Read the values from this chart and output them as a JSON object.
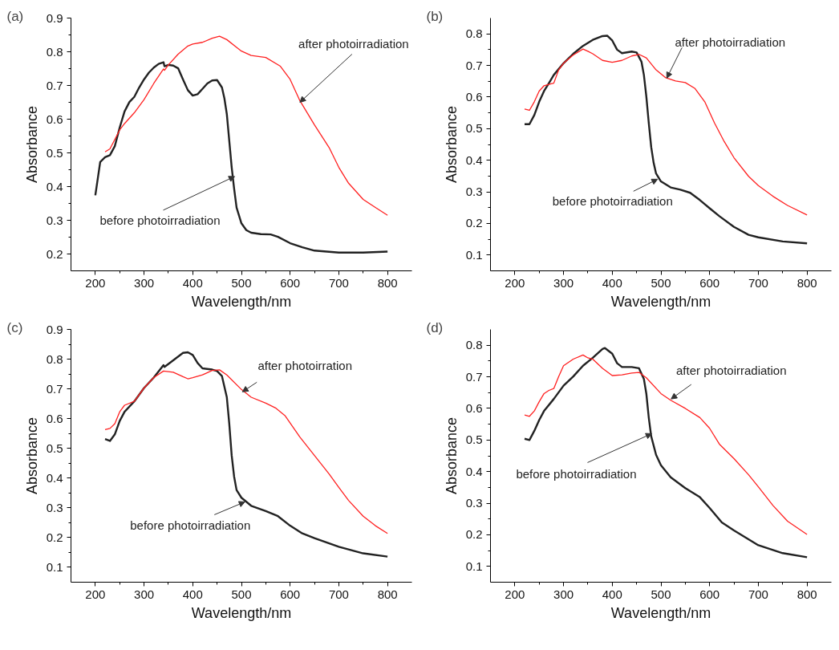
{
  "chart_data": [
    {
      "type": "line",
      "title": "(a)",
      "xlabel": "Wavelength/nm",
      "ylabel": "Absorbance",
      "xlim": [
        150,
        850
      ],
      "ylim": [
        0.15,
        0.9
      ],
      "xticks": [
        200,
        {
          "value": 250,
          "label": null
        },
        300,
        {
          "value": 350,
          "label": null
        },
        400,
        {
          "value": 450,
          "label": null
        },
        500,
        {
          "value": 550,
          "label": null
        },
        600,
        {
          "value": 650,
          "label": null
        },
        700,
        {
          "value": 750,
          "label": null
        },
        800
      ],
      "yticks": [
        0.2,
        {
          "value": 0.25,
          "label": null
        },
        0.3,
        {
          "value": 0.35,
          "label": null
        },
        0.4,
        {
          "value": 0.45,
          "label": null
        },
        0.5,
        {
          "value": 0.55,
          "label": null
        },
        0.6,
        {
          "value": 0.65,
          "label": null
        },
        0.7,
        {
          "value": 0.75,
          "label": null
        },
        0.8,
        {
          "value": 0.85,
          "label": null
        },
        0.9
      ],
      "series": [
        {
          "color": "#222222",
          "x": [
            200,
            210,
            220,
            230,
            240,
            250,
            260,
            270,
            280,
            290,
            300,
            310,
            320,
            330,
            340,
            342,
            350,
            360,
            370,
            380,
            390,
            400,
            410,
            420,
            430,
            440,
            450,
            460,
            465,
            470,
            475,
            480,
            485,
            490,
            500,
            510,
            520,
            540,
            560,
            575,
            600,
            625,
            650,
            700,
            750,
            800
          ],
          "values": [
            0.374,
            0.473,
            0.487,
            0.493,
            0.52,
            0.575,
            0.623,
            0.651,
            0.666,
            0.694,
            0.718,
            0.738,
            0.753,
            0.764,
            0.769,
            0.757,
            0.761,
            0.759,
            0.751,
            0.718,
            0.686,
            0.67,
            0.674,
            0.69,
            0.706,
            0.715,
            0.716,
            0.694,
            0.662,
            0.615,
            0.536,
            0.457,
            0.394,
            0.338,
            0.291,
            0.271,
            0.263,
            0.259,
            0.258,
            0.251,
            0.232,
            0.22,
            0.21,
            0.204,
            0.204,
            0.207
          ]
        },
        {
          "color": "#ff2020",
          "x": [
            220,
            230,
            240,
            250,
            260,
            280,
            300,
            320,
            340,
            342,
            350,
            370,
            390,
            400,
            420,
            440,
            455,
            470,
            490,
            500,
            520,
            550,
            580,
            600,
            620,
            650,
            680,
            700,
            720,
            750,
            775,
            800
          ],
          "values": [
            0.503,
            0.512,
            0.54,
            0.568,
            0.587,
            0.619,
            0.658,
            0.706,
            0.749,
            0.745,
            0.761,
            0.793,
            0.817,
            0.823,
            0.828,
            0.84,
            0.846,
            0.836,
            0.813,
            0.802,
            0.789,
            0.783,
            0.757,
            0.718,
            0.655,
            0.583,
            0.516,
            0.457,
            0.41,
            0.362,
            0.338,
            0.315
          ]
        }
      ],
      "annotations": [
        {
          "text": "after photoirradiation",
          "x": 620,
          "y": 0.65
        },
        {
          "text": "before photoirradiation",
          "x": 486,
          "y": 0.43
        }
      ]
    },
    {
      "type": "line",
      "title": "(b)",
      "xlabel": "Wavelength/nm",
      "ylabel": "Absorbance",
      "xlim": [
        150,
        850
      ],
      "ylim": [
        0.05,
        0.85
      ],
      "xticks": [
        200,
        {
          "value": 250,
          "label": null
        },
        300,
        {
          "value": 350,
          "label": null
        },
        400,
        {
          "value": 450,
          "label": null
        },
        500,
        {
          "value": 550,
          "label": null
        },
        600,
        {
          "value": 650,
          "label": null
        },
        700,
        {
          "value": 750,
          "label": null
        },
        800
      ],
      "yticks": [
        0.1,
        {
          "value": 0.15,
          "label": null
        },
        0.2,
        {
          "value": 0.25,
          "label": null
        },
        0.3,
        {
          "value": 0.35,
          "label": null
        },
        0.4,
        {
          "value": 0.45,
          "label": null
        },
        0.5,
        {
          "value": 0.55,
          "label": null
        },
        0.6,
        {
          "value": 0.65,
          "label": null
        },
        0.7,
        {
          "value": 0.75,
          "label": null
        },
        0.8
      ],
      "series": [
        {
          "color": "#222222",
          "x": [
            220,
            230,
            240,
            250,
            260,
            270,
            280,
            300,
            320,
            340,
            360,
            380,
            390,
            400,
            410,
            420,
            440,
            450,
            460,
            465,
            470,
            475,
            480,
            485,
            490,
            500,
            520,
            540,
            560,
            580,
            600,
            620,
            650,
            680,
            700,
            750,
            800
          ],
          "values": [
            0.514,
            0.514,
            0.543,
            0.585,
            0.619,
            0.644,
            0.67,
            0.707,
            0.737,
            0.762,
            0.781,
            0.793,
            0.794,
            0.779,
            0.75,
            0.739,
            0.744,
            0.741,
            0.712,
            0.67,
            0.602,
            0.518,
            0.442,
            0.392,
            0.358,
            0.333,
            0.314,
            0.307,
            0.297,
            0.274,
            0.248,
            0.223,
            0.189,
            0.164,
            0.156,
            0.143,
            0.137
          ]
        },
        {
          "color": "#ff2020",
          "x": [
            220,
            230,
            240,
            250,
            260,
            270,
            280,
            290,
            300,
            320,
            340,
            350,
            360,
            380,
            400,
            420,
            440,
            455,
            470,
            490,
            510,
            530,
            550,
            570,
            590,
            610,
            630,
            650,
            680,
            700,
            730,
            760,
            800
          ],
          "values": [
            0.562,
            0.558,
            0.585,
            0.619,
            0.636,
            0.64,
            0.644,
            0.686,
            0.707,
            0.733,
            0.752,
            0.745,
            0.737,
            0.716,
            0.71,
            0.716,
            0.73,
            0.735,
            0.724,
            0.686,
            0.661,
            0.651,
            0.646,
            0.627,
            0.585,
            0.518,
            0.459,
            0.408,
            0.349,
            0.32,
            0.286,
            0.257,
            0.227
          ]
        }
      ],
      "annotations": [
        {
          "text": "after photoirradiation",
          "x": 512,
          "y": 0.66
        },
        {
          "text": "before photoirradiation",
          "x": 493,
          "y": 0.34
        }
      ]
    },
    {
      "type": "line",
      "title": "(c)",
      "xlabel": "Wavelength/nm",
      "ylabel": "Absorbance",
      "xlim": [
        150,
        850
      ],
      "ylim": [
        0.05,
        0.9
      ],
      "xticks": [
        200,
        {
          "value": 250,
          "label": null
        },
        300,
        {
          "value": 350,
          "label": null
        },
        400,
        {
          "value": 450,
          "label": null
        },
        500,
        {
          "value": 550,
          "label": null
        },
        600,
        {
          "value": 650,
          "label": null
        },
        700,
        {
          "value": 750,
          "label": null
        },
        800
      ],
      "yticks": [
        0.1,
        {
          "value": 0.15,
          "label": null
        },
        0.2,
        {
          "value": 0.25,
          "label": null
        },
        0.3,
        {
          "value": 0.35,
          "label": null
        },
        0.4,
        {
          "value": 0.45,
          "label": null
        },
        0.5,
        {
          "value": 0.55,
          "label": null
        },
        0.6,
        {
          "value": 0.65,
          "label": null
        },
        0.7,
        {
          "value": 0.75,
          "label": null
        },
        0.8,
        {
          "value": 0.85,
          "label": null
        },
        0.9
      ],
      "series": [
        {
          "color": "#222222",
          "x": [
            220,
            230,
            240,
            250,
            260,
            280,
            300,
            320,
            340,
            342,
            360,
            380,
            390,
            400,
            410,
            420,
            440,
            450,
            460,
            470,
            475,
            480,
            485,
            490,
            500,
            520,
            550,
            575,
            600,
            625,
            650,
            700,
            750,
            800
          ],
          "values": [
            0.531,
            0.525,
            0.547,
            0.592,
            0.623,
            0.658,
            0.703,
            0.738,
            0.78,
            0.774,
            0.796,
            0.821,
            0.823,
            0.814,
            0.787,
            0.769,
            0.765,
            0.76,
            0.743,
            0.672,
            0.583,
            0.476,
            0.405,
            0.36,
            0.334,
            0.307,
            0.289,
            0.272,
            0.24,
            0.214,
            0.198,
            0.169,
            0.147,
            0.136
          ]
        },
        {
          "color": "#ff2020",
          "x": [
            220,
            230,
            240,
            250,
            260,
            280,
            300,
            320,
            340,
            360,
            380,
            390,
            400,
            420,
            440,
            455,
            470,
            500,
            520,
            550,
            570,
            590,
            620,
            650,
            680,
            700,
            720,
            750,
            775,
            800
          ],
          "values": [
            0.563,
            0.567,
            0.583,
            0.623,
            0.645,
            0.658,
            0.703,
            0.738,
            0.76,
            0.756,
            0.741,
            0.734,
            0.738,
            0.747,
            0.762,
            0.764,
            0.747,
            0.698,
            0.672,
            0.652,
            0.636,
            0.609,
            0.538,
            0.476,
            0.414,
            0.369,
            0.325,
            0.272,
            0.24,
            0.214
          ]
        }
      ],
      "annotations": [
        {
          "text": "after photoirration",
          "x": 502,
          "y": 0.69
        },
        {
          "text": "before photoirradiation",
          "x": 507,
          "y": 0.32
        }
      ]
    },
    {
      "type": "line",
      "title": "(d)",
      "xlabel": "Wavelength/nm",
      "ylabel": "Absorbance",
      "xlim": [
        150,
        850
      ],
      "ylim": [
        0.05,
        0.85
      ],
      "xticks": [
        200,
        {
          "value": 250,
          "label": null
        },
        300,
        {
          "value": 350,
          "label": null
        },
        400,
        {
          "value": 450,
          "label": null
        },
        500,
        {
          "value": 550,
          "label": null
        },
        600,
        {
          "value": 650,
          "label": null
        },
        700,
        {
          "value": 750,
          "label": null
        },
        800
      ],
      "yticks": [
        0.1,
        {
          "value": 0.15,
          "label": null
        },
        0.2,
        {
          "value": 0.25,
          "label": null
        },
        0.3,
        {
          "value": 0.35,
          "label": null
        },
        0.4,
        {
          "value": 0.45,
          "label": null
        },
        0.5,
        {
          "value": 0.55,
          "label": null
        },
        0.6,
        {
          "value": 0.65,
          "label": null
        },
        0.7,
        {
          "value": 0.75,
          "label": null
        },
        0.8
      ],
      "series": [
        {
          "color": "#222222",
          "x": [
            220,
            230,
            240,
            250,
            260,
            280,
            300,
            320,
            340,
            360,
            380,
            385,
            400,
            410,
            420,
            440,
            455,
            465,
            470,
            475,
            480,
            490,
            500,
            520,
            550,
            580,
            600,
            625,
            650,
            700,
            750,
            800
          ],
          "values": [
            0.504,
            0.5,
            0.529,
            0.563,
            0.592,
            0.63,
            0.672,
            0.701,
            0.735,
            0.76,
            0.788,
            0.791,
            0.773,
            0.743,
            0.731,
            0.731,
            0.727,
            0.693,
            0.647,
            0.571,
            0.512,
            0.453,
            0.42,
            0.382,
            0.348,
            0.319,
            0.285,
            0.239,
            0.214,
            0.167,
            0.142,
            0.129
          ]
        },
        {
          "color": "#ff2020",
          "x": [
            220,
            230,
            240,
            250,
            260,
            270,
            280,
            290,
            300,
            320,
            340,
            350,
            360,
            380,
            400,
            420,
            440,
            455,
            470,
            500,
            520,
            550,
            580,
            600,
            620,
            650,
            680,
            700,
            730,
            760,
            800
          ],
          "values": [
            0.579,
            0.575,
            0.592,
            0.621,
            0.647,
            0.657,
            0.663,
            0.701,
            0.735,
            0.756,
            0.769,
            0.76,
            0.756,
            0.727,
            0.704,
            0.706,
            0.712,
            0.714,
            0.697,
            0.647,
            0.626,
            0.6,
            0.571,
            0.537,
            0.487,
            0.441,
            0.39,
            0.352,
            0.293,
            0.243,
            0.201
          ]
        }
      ],
      "annotations": [
        {
          "text": "after photoirradiation",
          "x": 521,
          "y": 0.63
        },
        {
          "text": "before photoirradiation",
          "x": 481,
          "y": 0.52
        }
      ]
    }
  ]
}
